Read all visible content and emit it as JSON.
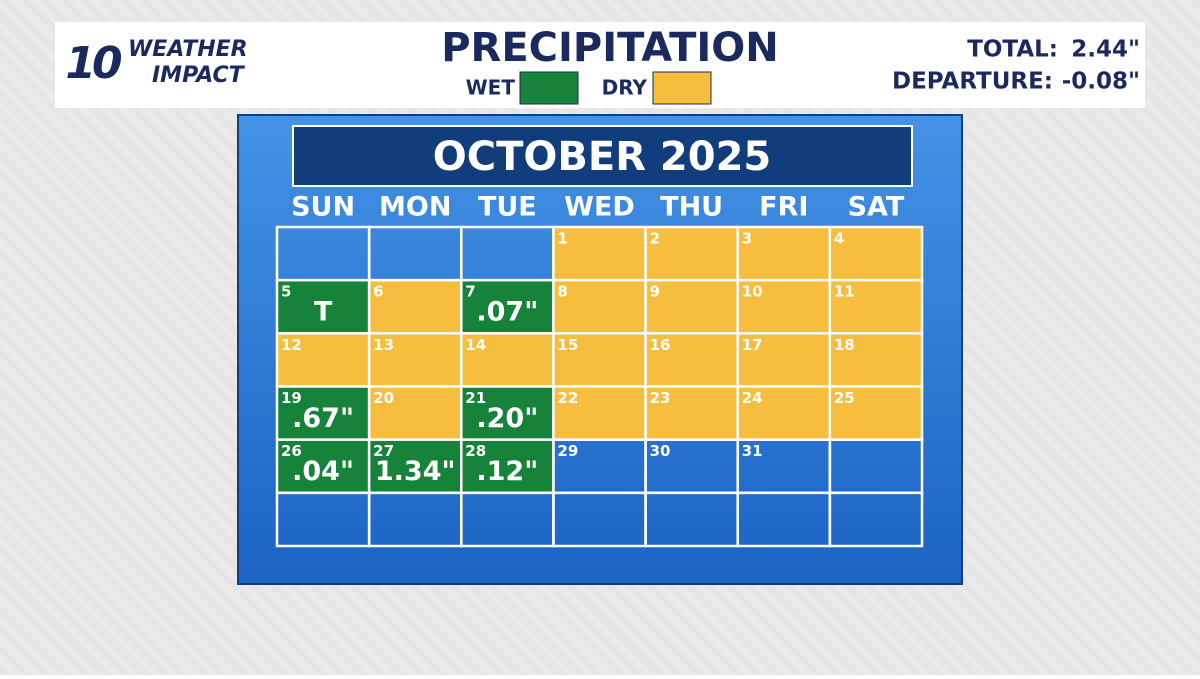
{
  "header": {
    "logo": {
      "number": "10",
      "line1": "WEATHER",
      "line2": "IMPACT"
    },
    "title": "PRECIPITATION",
    "legend": {
      "wet": {
        "label": "WET",
        "color": "#17823a"
      },
      "dry": {
        "label": "DRY",
        "color": "#f7bd3f"
      }
    },
    "total": {
      "label": "TOTAL:",
      "value": "2.44\""
    },
    "departure": {
      "label": "DEPARTURE:",
      "value": "-0.08\""
    }
  },
  "calendar": {
    "title": "OCTOBER 2025",
    "weekdays": [
      "SUN",
      "MON",
      "TUE",
      "WED",
      "THU",
      "FRI",
      "SAT"
    ],
    "rows": [
      [
        {
          "day": null,
          "status": null
        },
        {
          "day": null,
          "status": null
        },
        {
          "day": null,
          "status": null
        },
        {
          "day": 1,
          "status": "dry"
        },
        {
          "day": 2,
          "status": "dry"
        },
        {
          "day": 3,
          "status": "dry"
        },
        {
          "day": 4,
          "status": "dry"
        }
      ],
      [
        {
          "day": 5,
          "status": "wet",
          "amount": "T"
        },
        {
          "day": 6,
          "status": "dry"
        },
        {
          "day": 7,
          "status": "wet",
          "amount": ".07\""
        },
        {
          "day": 8,
          "status": "dry"
        },
        {
          "day": 9,
          "status": "dry"
        },
        {
          "day": 10,
          "status": "dry"
        },
        {
          "day": 11,
          "status": "dry"
        }
      ],
      [
        {
          "day": 12,
          "status": "dry"
        },
        {
          "day": 13,
          "status": "dry"
        },
        {
          "day": 14,
          "status": "dry"
        },
        {
          "day": 15,
          "status": "dry"
        },
        {
          "day": 16,
          "status": "dry"
        },
        {
          "day": 17,
          "status": "dry"
        },
        {
          "day": 18,
          "status": "dry"
        }
      ],
      [
        {
          "day": 19,
          "status": "wet",
          "amount": ".67\""
        },
        {
          "day": 20,
          "status": "dry"
        },
        {
          "day": 21,
          "status": "wet",
          "amount": ".20\""
        },
        {
          "day": 22,
          "status": "dry"
        },
        {
          "day": 23,
          "status": "dry"
        },
        {
          "day": 24,
          "status": "dry"
        },
        {
          "day": 25,
          "status": "dry"
        }
      ],
      [
        {
          "day": 26,
          "status": "wet",
          "amount": ".04\""
        },
        {
          "day": 27,
          "status": "wet",
          "amount": "1.34\""
        },
        {
          "day": 28,
          "status": "wet",
          "amount": ".12\""
        },
        {
          "day": 29,
          "status": null
        },
        {
          "day": 30,
          "status": null
        },
        {
          "day": 31,
          "status": null
        },
        {
          "day": null,
          "status": null
        }
      ],
      [
        {
          "day": null,
          "status": null
        },
        {
          "day": null,
          "status": null
        },
        {
          "day": null,
          "status": null
        },
        {
          "day": null,
          "status": null
        },
        {
          "day": null,
          "status": null
        },
        {
          "day": null,
          "status": null
        },
        {
          "day": null,
          "status": null
        }
      ]
    ]
  }
}
